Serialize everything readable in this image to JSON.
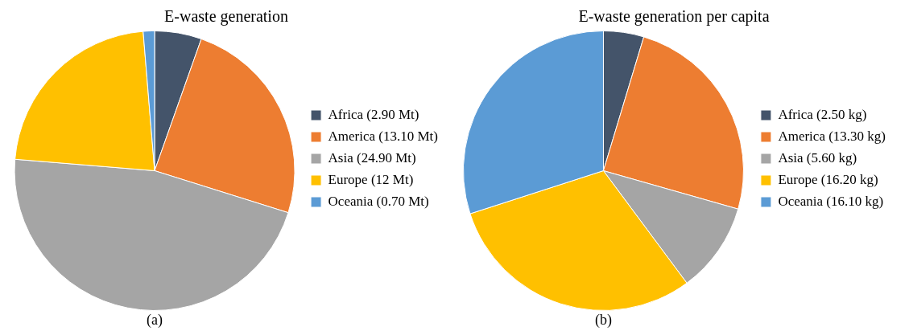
{
  "chart_data": [
    {
      "type": "pie",
      "title": "E-waste generation",
      "categories": [
        "Africa (2.90 Mt)",
        "America (13.10 Mt)",
        "Asia (24.90 Mt)",
        "Europe (12 Mt)",
        "Oceania (0.70 Mt)"
      ],
      "values": [
        2.9,
        13.1,
        24.9,
        12,
        0.7
      ],
      "colors": [
        "#44546a",
        "#ed7d31",
        "#a5a5a5",
        "#ffc000",
        "#5b9bd5"
      ],
      "legend": "right",
      "annotations": [
        "(a)"
      ]
    },
    {
      "type": "pie",
      "title": "E-waste generation per capita",
      "categories": [
        "Africa (2.50 kg)",
        "America (13.30 kg)",
        "Asia (5.60 kg)",
        "Europe (16.20 kg)",
        "Oceania (16.10 kg)"
      ],
      "values": [
        2.5,
        13.3,
        5.6,
        16.2,
        16.1
      ],
      "colors": [
        "#44546a",
        "#ed7d31",
        "#a5a5a5",
        "#ffc000",
        "#5b9bd5"
      ],
      "legend": "right",
      "annotations": [
        "(b)"
      ]
    }
  ]
}
